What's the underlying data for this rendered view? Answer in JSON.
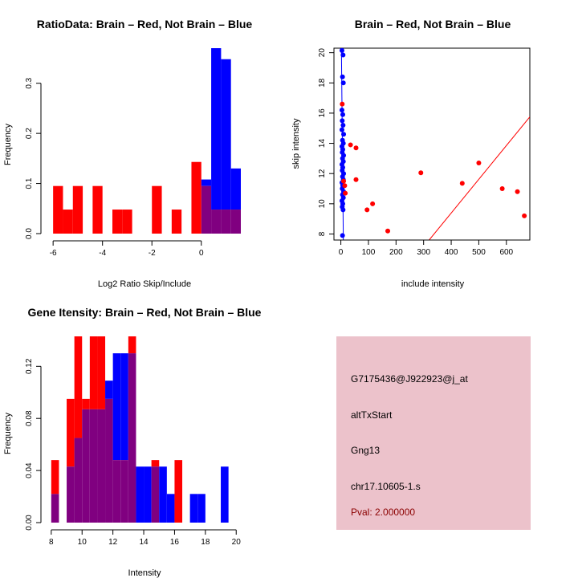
{
  "colors": {
    "red": "#ff0000",
    "blue": "#0000ff",
    "purple": "#800080",
    "panel_bg": "#ecc2cb",
    "pval": "#8b0000"
  },
  "chart_data": [
    {
      "type": "bar",
      "subtype": "overlaid-histogram",
      "title": "RatioData: Brain – Red, Not Brain – Blue",
      "xlabel": "Log2 Ratio Skip/Include",
      "ylabel": "Frequency",
      "xlim": [
        -6.2,
        1.6
      ],
      "ylim": [
        0,
        0.37
      ],
      "xticks": [
        -6,
        -4,
        -2,
        0
      ],
      "yticks": [
        0.0,
        0.1,
        0.2,
        0.3
      ],
      "ytick_labels": [
        "0.0",
        "0.1",
        "0.2",
        "0.3"
      ],
      "bin_edges": [
        -6.0,
        -5.6,
        -5.2,
        -4.8,
        -4.4,
        -4.0,
        -3.6,
        -3.2,
        -2.8,
        -2.4,
        -2.0,
        -1.6,
        -1.2,
        -0.8,
        -0.4,
        0.0,
        0.4,
        0.8,
        1.2,
        1.6
      ],
      "series": [
        {
          "name": "Brain",
          "color": "red",
          "values": [
            0.095,
            0.048,
            0.095,
            0,
            0.095,
            0,
            0.048,
            0.048,
            0,
            0,
            0.095,
            0,
            0.048,
            0,
            0.143,
            0.095,
            0.048,
            0.048,
            0.048
          ]
        },
        {
          "name": "Not Brain",
          "color": "blue",
          "values": [
            0,
            0,
            0,
            0,
            0,
            0,
            0,
            0,
            0,
            0,
            0,
            0,
            0,
            0,
            0,
            0.108,
            0.37,
            0.348,
            0.13
          ]
        }
      ]
    },
    {
      "type": "scatter",
      "title": "Brain – Red, Not Brain – Blue",
      "xlabel": "include intensity",
      "ylabel": "skip intensity",
      "xlim": [
        -25,
        685
      ],
      "ylim": [
        7.6,
        20.3
      ],
      "xticks": [
        0,
        100,
        200,
        300,
        400,
        500,
        600
      ],
      "yticks": [
        8,
        10,
        12,
        14,
        16,
        18,
        20
      ],
      "series": [
        {
          "name": "Brain",
          "color": "red",
          "points": [
            [
              5,
              16.6
            ],
            [
              10,
              11.5
            ],
            [
              14,
              11.2
            ],
            [
              16,
              10.7
            ],
            [
              35,
              13.9
            ],
            [
              55,
              13.7
            ],
            [
              55,
              11.6
            ],
            [
              95,
              9.6
            ],
            [
              115,
              10.0
            ],
            [
              170,
              8.2
            ],
            [
              290,
              12.05
            ],
            [
              440,
              11.35
            ],
            [
              500,
              12.7
            ],
            [
              585,
              11.0
            ],
            [
              640,
              10.8
            ],
            [
              665,
              9.2
            ]
          ]
        },
        {
          "name": "Not Brain",
          "color": "blue",
          "points": [
            [
              4,
              20.15
            ],
            [
              8,
              19.85
            ],
            [
              6,
              18.4
            ],
            [
              9,
              18.0
            ],
            [
              4,
              16.2
            ],
            [
              7,
              15.9
            ],
            [
              5,
              15.5
            ],
            [
              8,
              15.2
            ],
            [
              4,
              14.9
            ],
            [
              10,
              14.6
            ],
            [
              6,
              14.2
            ],
            [
              9,
              14.0
            ],
            [
              4,
              13.8
            ],
            [
              7,
              13.6
            ],
            [
              5,
              13.4
            ],
            [
              10,
              13.2
            ],
            [
              6,
              13.0
            ],
            [
              9,
              12.8
            ],
            [
              4,
              12.6
            ],
            [
              7,
              12.4
            ],
            [
              5,
              12.2
            ],
            [
              10,
              12.0
            ],
            [
              6,
              11.8
            ],
            [
              9,
              11.6
            ],
            [
              4,
              11.4
            ],
            [
              7,
              11.2
            ],
            [
              5,
              11.0
            ],
            [
              10,
              10.8
            ],
            [
              6,
              10.6
            ],
            [
              9,
              10.4
            ],
            [
              4,
              10.2
            ],
            [
              7,
              10.0
            ],
            [
              5,
              9.8
            ],
            [
              8,
              9.6
            ],
            [
              6,
              7.9
            ]
          ]
        }
      ],
      "lines": [
        {
          "name": "Brain fit",
          "color": "red",
          "points": [
            [
              320,
              7.6
            ],
            [
              685,
              15.75
            ]
          ]
        },
        {
          "name": "Not Brain fit",
          "color": "blue",
          "points": [
            [
              9,
              7.6
            ],
            [
              2,
              20.3
            ]
          ]
        }
      ]
    },
    {
      "type": "bar",
      "subtype": "overlaid-histogram",
      "title": "Gene Itensity: Brain – Red, Not Brain – Blue",
      "xlabel": "Intensity",
      "ylabel": "Frequency",
      "xlim": [
        7.8,
        20.3
      ],
      "ylim": [
        0,
        0.143
      ],
      "xticks": [
        8,
        10,
        12,
        14,
        16,
        18,
        20
      ],
      "yticks": [
        0.0,
        0.04,
        0.08,
        0.12
      ],
      "ytick_labels": [
        "0.00",
        "0.04",
        "0.08",
        "0.12"
      ],
      "bin_edges": [
        8.0,
        8.5,
        9.0,
        9.5,
        10.0,
        10.5,
        11.0,
        11.5,
        12.0,
        12.5,
        13.0,
        13.5,
        14.0,
        14.5,
        15.0,
        15.5,
        16.0,
        16.5,
        17.0,
        17.5,
        18.0,
        18.5,
        19.0,
        19.5,
        20.0
      ],
      "series": [
        {
          "name": "Brain",
          "color": "red",
          "values": [
            0.048,
            0,
            0.095,
            0.143,
            0.095,
            0.143,
            0.143,
            0.095,
            0.048,
            0.048,
            0.143,
            0,
            0,
            0.048,
            0,
            0,
            0.048,
            0,
            0,
            0,
            0,
            0,
            0,
            0
          ]
        },
        {
          "name": "Not Brain",
          "color": "blue",
          "values": [
            0.022,
            0,
            0.043,
            0.065,
            0.087,
            0.087,
            0.087,
            0.109,
            0.13,
            0.13,
            0.13,
            0.043,
            0.043,
            0.043,
            0.043,
            0.022,
            0,
            0,
            0.022,
            0.022,
            0,
            0,
            0.043,
            0
          ]
        }
      ]
    }
  ],
  "info_panel": {
    "probe_id": "G7175436@J922923@j_at",
    "event_type": "altTxStart",
    "gene": "Gng13",
    "location": "chr17.10605-1.s",
    "pval": "Pval: 2.000000"
  }
}
